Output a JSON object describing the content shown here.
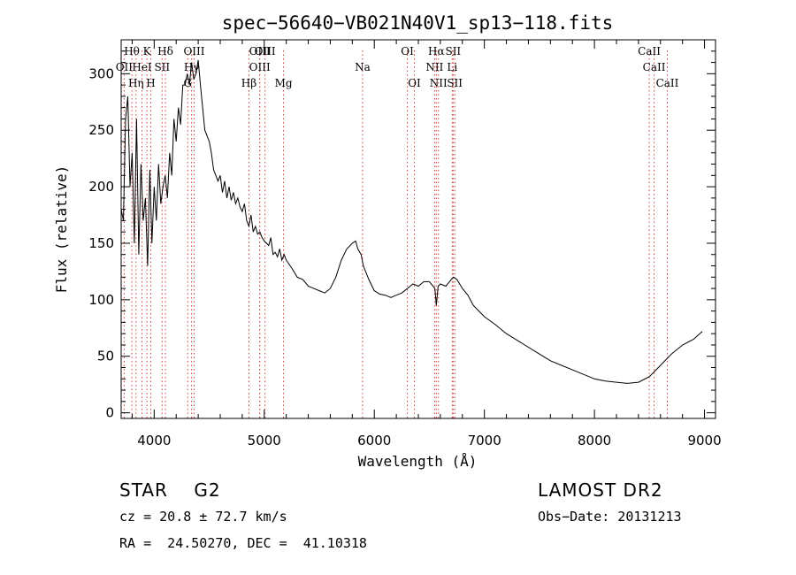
{
  "chart_data": {
    "type": "line",
    "title": "spec−56640−VB021N40V1_sp13−118.fits",
    "xlabel": "Wavelength (Å)",
    "ylabel": "Flux (relative)",
    "xlim": [
      3700,
      9100
    ],
    "ylim": [
      -5,
      330
    ],
    "xticks": [
      4000,
      5000,
      6000,
      7000,
      8000,
      9000
    ],
    "yticks": [
      0,
      50,
      100,
      150,
      200,
      250,
      300
    ],
    "grid": false,
    "series": [
      {
        "x": [
          3700,
          3720,
          3740,
          3760,
          3780,
          3800,
          3820,
          3840,
          3860,
          3880,
          3900,
          3920,
          3940,
          3960,
          3980,
          4000,
          4020,
          4040,
          4060,
          4080,
          4100,
          4120,
          4140,
          4160,
          4180,
          4200,
          4220,
          4240,
          4260,
          4280,
          4300,
          4320,
          4340,
          4360,
          4380,
          4400,
          4420,
          4440,
          4460,
          4480,
          4500,
          4520,
          4540,
          4560,
          4580,
          4600,
          4620,
          4640,
          4660,
          4680,
          4700,
          4720,
          4740,
          4760,
          4780,
          4800,
          4820,
          4840,
          4860,
          4880,
          4900,
          4920,
          4940,
          4960,
          4980,
          5000,
          5020,
          5040,
          5060,
          5080,
          5100,
          5120,
          5140,
          5160,
          5180,
          5200,
          5250,
          5300,
          5350,
          5400,
          5450,
          5500,
          5550,
          5600,
          5650,
          5700,
          5750,
          5800,
          5830,
          5850,
          5880,
          5900,
          5950,
          6000,
          6050,
          6100,
          6150,
          6200,
          6250,
          6300,
          6350,
          6400,
          6450,
          6500,
          6550,
          6563,
          6580,
          6600,
          6650,
          6700,
          6720,
          6750,
          6800,
          6850,
          6900,
          6950,
          7000,
          7100,
          7200,
          7300,
          7400,
          7500,
          7600,
          7700,
          7800,
          7900,
          8000,
          8100,
          8200,
          8300,
          8400,
          8500,
          8600,
          8700,
          8800,
          8900,
          8980
        ],
        "y": [
          180,
          170,
          260,
          280,
          200,
          230,
          150,
          260,
          140,
          220,
          170,
          190,
          130,
          215,
          150,
          200,
          170,
          220,
          185,
          200,
          210,
          190,
          230,
          210,
          260,
          240,
          270,
          255,
          290,
          290,
          300,
          290,
          310,
          295,
          300,
          312,
          290,
          270,
          250,
          245,
          240,
          230,
          215,
          210,
          205,
          210,
          195,
          205,
          190,
          200,
          188,
          195,
          185,
          190,
          182,
          178,
          185,
          170,
          165,
          175,
          160,
          165,
          158,
          160,
          155,
          152,
          150,
          148,
          155,
          140,
          142,
          138,
          145,
          135,
          140,
          135,
          128,
          120,
          118,
          112,
          110,
          108,
          106,
          110,
          120,
          135,
          145,
          150,
          152,
          145,
          140,
          130,
          118,
          108,
          105,
          104,
          102,
          104,
          106,
          110,
          114,
          112,
          116,
          116,
          110,
          95,
          112,
          114,
          112,
          118,
          120,
          118,
          110,
          104,
          95,
          90,
          85,
          78,
          70,
          64,
          58,
          52,
          46,
          42,
          38,
          34,
          30,
          28,
          27,
          26,
          27,
          32,
          42,
          52,
          60,
          65,
          72
        ]
      }
    ],
    "annotations": {
      "info_lines": [
        "STAR    G2",
        "cz = 20.8 ± 72.7 km/s",
        "RA =  24.50270, DEC =  41.10318",
        "LAMOST DR2",
        "Obs−Date: 20131213"
      ],
      "line_labels": [
        "Hθ",
        "K",
        "Hδ",
        "OII",
        "HeI",
        "SII",
        "OIII",
        "Hη",
        "H",
        "OIII",
        "Hγ",
        "G",
        "OIII",
        "OIII",
        "Hβ",
        "Mg",
        "Na",
        "OI",
        "OI",
        "Hα",
        "SII",
        "NII",
        "Li",
        "NII",
        "SII",
        "CaII",
        "CaII",
        "CaII"
      ],
      "line_positions": [
        3797,
        3934,
        4102,
        3727,
        3889,
        4072,
        4363,
        3835,
        3969,
        4959,
        4340,
        4305,
        5007,
        4959,
        4861,
        5175,
        5893,
        6300,
        6364,
        6563,
        6716,
        6548,
        6708,
        6583,
        6731,
        8498,
        8542,
        8662
      ]
    }
  }
}
